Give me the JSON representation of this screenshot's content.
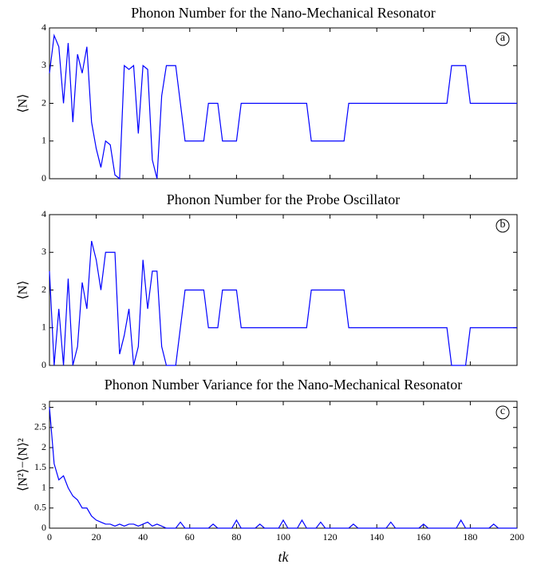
{
  "chart_data": [
    {
      "type": "line",
      "title": "Phonon Number for the Nano-Mechanical Resonator",
      "ylabel": "⟨N⟩",
      "annotation": "a",
      "x": [
        0,
        2,
        4,
        6,
        8,
        10,
        12,
        14,
        16,
        18,
        20,
        22,
        24,
        26,
        28,
        30,
        32,
        34,
        36,
        38,
        40,
        42,
        44,
        46,
        48,
        50,
        52,
        54,
        56,
        58,
        60,
        62,
        64,
        66,
        68,
        70,
        72,
        74,
        76,
        78,
        80,
        82,
        84,
        86,
        88,
        90,
        92,
        94,
        96,
        98,
        100,
        102,
        104,
        106,
        108,
        110,
        112,
        114,
        116,
        118,
        120,
        122,
        124,
        126,
        128,
        130,
        132,
        134,
        136,
        138,
        140,
        142,
        144,
        146,
        148,
        150,
        152,
        154,
        156,
        158,
        160,
        162,
        164,
        166,
        168,
        170,
        172,
        174,
        176,
        178,
        180,
        182,
        184,
        186,
        188,
        190,
        192,
        194,
        196,
        198,
        200
      ],
      "values": [
        2.8,
        3.8,
        3.5,
        2.0,
        3.6,
        1.5,
        3.3,
        2.8,
        3.5,
        1.5,
        0.8,
        0.3,
        1.0,
        0.9,
        0.1,
        0,
        3,
        2.9,
        3,
        1.2,
        3,
        2.9,
        0.5,
        0,
        2.2,
        3,
        3,
        3,
        2,
        1,
        1,
        1,
        1,
        1,
        2,
        2,
        2,
        1,
        1,
        1,
        1,
        2,
        2,
        2,
        2,
        2,
        2,
        2,
        2,
        2,
        2,
        2,
        2,
        2,
        2,
        2,
        1,
        1,
        1,
        1,
        1,
        1,
        1,
        1,
        2,
        2,
        2,
        2,
        2,
        2,
        2,
        2,
        2,
        2,
        2,
        2,
        2,
        2,
        2,
        2,
        2,
        2,
        2,
        2,
        2,
        2,
        3,
        3,
        3,
        3,
        2,
        2,
        2,
        2,
        2,
        2,
        2,
        2,
        2,
        2,
        2
      ],
      "color": "#0000ff",
      "xlim": [
        0,
        200
      ],
      "xticks": [
        0,
        20,
        40,
        60,
        80,
        100,
        120,
        140,
        160,
        180,
        200
      ],
      "xtick_labels": false,
      "ylim": [
        0,
        4
      ],
      "yticks": [
        0,
        1,
        2,
        3,
        4
      ]
    },
    {
      "type": "line",
      "title": "Phonon Number for the Probe Oscillator",
      "ylabel": "⟨N⟩",
      "annotation": "b",
      "x": [
        0,
        2,
        4,
        6,
        8,
        10,
        12,
        14,
        16,
        18,
        20,
        22,
        24,
        26,
        28,
        30,
        32,
        34,
        36,
        38,
        40,
        42,
        44,
        46,
        48,
        50,
        52,
        54,
        56,
        58,
        60,
        62,
        64,
        66,
        68,
        70,
        72,
        74,
        76,
        78,
        80,
        82,
        84,
        86,
        88,
        90,
        92,
        94,
        96,
        98,
        100,
        102,
        104,
        106,
        108,
        110,
        112,
        114,
        116,
        118,
        120,
        122,
        124,
        126,
        128,
        130,
        132,
        134,
        136,
        138,
        140,
        142,
        144,
        146,
        148,
        150,
        152,
        154,
        156,
        158,
        160,
        162,
        164,
        166,
        168,
        170,
        172,
        174,
        176,
        178,
        180,
        182,
        184,
        186,
        188,
        190,
        192,
        194,
        196,
        198,
        200
      ],
      "values": [
        2.5,
        0,
        1.5,
        0,
        2.3,
        0,
        0.5,
        2.2,
        1.5,
        3.3,
        2.8,
        2,
        3,
        3,
        3,
        0.3,
        0.8,
        1.5,
        0,
        0.5,
        2.8,
        1.5,
        2.5,
        2.5,
        0.5,
        0,
        0,
        0,
        1,
        2,
        2,
        2,
        2,
        2,
        1,
        1,
        1,
        2,
        2,
        2,
        2,
        1,
        1,
        1,
        1,
        1,
        1,
        1,
        1,
        1,
        1,
        1,
        1,
        1,
        1,
        1,
        2,
        2,
        2,
        2,
        2,
        2,
        2,
        2,
        1,
        1,
        1,
        1,
        1,
        1,
        1,
        1,
        1,
        1,
        1,
        1,
        1,
        1,
        1,
        1,
        1,
        1,
        1,
        1,
        1,
        1,
        0,
        0,
        0,
        0,
        1,
        1,
        1,
        1,
        1,
        1,
        1,
        1,
        1,
        1,
        1
      ],
      "color": "#0000ff",
      "xlim": [
        0,
        200
      ],
      "xticks": [
        0,
        20,
        40,
        60,
        80,
        100,
        120,
        140,
        160,
        180,
        200
      ],
      "xtick_labels": false,
      "ylim": [
        0,
        4
      ],
      "yticks": [
        0,
        1,
        2,
        3,
        4
      ]
    },
    {
      "type": "line",
      "title": "Phonon Number Variance for the Nano-Mechanical Resonator",
      "ylabel": "⟨N²⟩−⟨N⟩²",
      "xlabel": "tk",
      "annotation": "c",
      "x": [
        0,
        2,
        4,
        6,
        8,
        10,
        12,
        14,
        16,
        18,
        20,
        22,
        24,
        26,
        28,
        30,
        32,
        34,
        36,
        38,
        40,
        42,
        44,
        46,
        48,
        50,
        52,
        54,
        56,
        58,
        60,
        62,
        64,
        66,
        68,
        70,
        72,
        74,
        76,
        78,
        80,
        82,
        84,
        86,
        88,
        90,
        92,
        94,
        96,
        98,
        100,
        102,
        104,
        106,
        108,
        110,
        112,
        114,
        116,
        118,
        120,
        122,
        124,
        126,
        128,
        130,
        132,
        134,
        136,
        138,
        140,
        142,
        144,
        146,
        148,
        150,
        152,
        154,
        156,
        158,
        160,
        162,
        164,
        166,
        168,
        170,
        172,
        174,
        176,
        178,
        180,
        182,
        184,
        186,
        188,
        190,
        192,
        194,
        196,
        198,
        200
      ],
      "values": [
        3.0,
        1.6,
        1.2,
        1.3,
        1.0,
        0.8,
        0.7,
        0.5,
        0.5,
        0.3,
        0.2,
        0.15,
        0.1,
        0.1,
        0.05,
        0.1,
        0.05,
        0.1,
        0.1,
        0.05,
        0.1,
        0.15,
        0.05,
        0.1,
        0.05,
        0,
        0,
        0,
        0.15,
        0,
        0,
        0,
        0,
        0,
        0,
        0.1,
        0,
        0,
        0,
        0,
        0.2,
        0,
        0,
        0,
        0,
        0.1,
        0,
        0,
        0,
        0,
        0.2,
        0,
        0,
        0,
        0.2,
        0,
        0,
        0,
        0.15,
        0,
        0,
        0,
        0,
        0,
        0,
        0.1,
        0,
        0,
        0,
        0,
        0,
        0,
        0,
        0.15,
        0,
        0,
        0,
        0,
        0,
        0,
        0.1,
        0,
        0,
        0,
        0,
        0,
        0,
        0,
        0.2,
        0,
        0,
        0,
        0,
        0,
        0,
        0.1,
        0,
        0,
        0,
        0,
        0
      ],
      "color": "#0000ff",
      "xlim": [
        0,
        200
      ],
      "xticks": [
        0,
        20,
        40,
        60,
        80,
        100,
        120,
        140,
        160,
        180,
        200
      ],
      "xtick_labels": true,
      "ylim": [
        0,
        3.15
      ],
      "yticks": [
        0,
        0.5,
        1,
        1.5,
        2,
        2.5,
        3
      ]
    }
  ]
}
